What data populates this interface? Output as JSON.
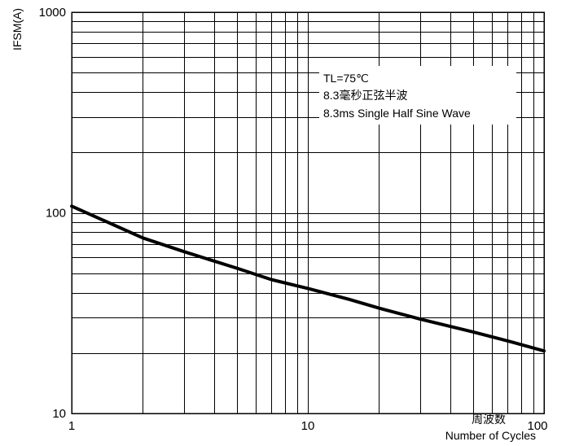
{
  "chart_data": {
    "type": "line",
    "title": "",
    "xscale": "log",
    "yscale": "log",
    "xlim": [
      1,
      100
    ],
    "ylim": [
      10,
      1000
    ],
    "grid": true,
    "xticks": [
      {
        "value": 1,
        "label": "1"
      },
      {
        "value": 10,
        "label": "10"
      },
      {
        "value": 100,
        "label": "100"
      }
    ],
    "yticks": [
      {
        "value": 10,
        "label": "10"
      },
      {
        "value": 100,
        "label": "100"
      },
      {
        "value": 1000,
        "label": "1000"
      }
    ],
    "xlabel_cn": "周波数",
    "xlabel": "Number of Cycles",
    "ylabel": "IFSM(A)",
    "annotation": {
      "line1": "TL=75℃",
      "line2": "8.3毫秒正弦半波",
      "line3": "8.3ms Single Half Sine Wave"
    },
    "series": [
      {
        "x": [
          1,
          2,
          3,
          5,
          7,
          10,
          15,
          20,
          30,
          50,
          70,
          100
        ],
        "y": [
          108,
          75,
          64,
          53,
          46.5,
          42,
          37,
          33.5,
          29.5,
          25.5,
          23,
          20.5
        ]
      }
    ]
  }
}
